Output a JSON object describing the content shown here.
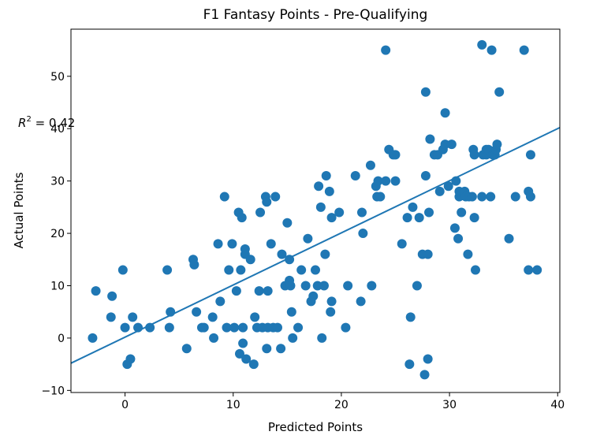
{
  "chart_data": {
    "type": "scatter",
    "title": "F1 Fantasy Points - Pre-Qualifying",
    "xlabel": "Predicted Points",
    "ylabel": "Actual Points",
    "xlim": [
      -5,
      40.2
    ],
    "ylim": [
      -10.4,
      59
    ],
    "xticks": [
      0,
      10,
      20,
      30,
      40
    ],
    "yticks": [
      -10,
      0,
      10,
      20,
      30,
      40,
      50
    ],
    "grid": false,
    "annotation": {
      "base": "R",
      "superscript": "2",
      "value_text": " = 0.42"
    },
    "point_color": "#1f77b4",
    "line_color": "#1f77b4",
    "fit_line": {
      "x": [
        -5,
        40.2
      ],
      "y": [
        -4.8,
        40.2
      ]
    },
    "points": [
      [
        -3,
        0
      ],
      [
        -2.7,
        9
      ],
      [
        -1.3,
        4
      ],
      [
        -1.2,
        8
      ],
      [
        -0.2,
        13
      ],
      [
        0,
        2
      ],
      [
        0.2,
        -5
      ],
      [
        0.5,
        -4
      ],
      [
        0.7,
        4
      ],
      [
        1.2,
        2
      ],
      [
        2.3,
        2
      ],
      [
        3.9,
        13
      ],
      [
        4.1,
        2
      ],
      [
        4.2,
        5
      ],
      [
        5.7,
        -2
      ],
      [
        6.3,
        15
      ],
      [
        6.4,
        14
      ],
      [
        6.6,
        5
      ],
      [
        7.1,
        2
      ],
      [
        7.3,
        2
      ],
      [
        8.1,
        4
      ],
      [
        8.2,
        0
      ],
      [
        8.6,
        18
      ],
      [
        8.8,
        7
      ],
      [
        9.2,
        27
      ],
      [
        9.4,
        2
      ],
      [
        9.6,
        13
      ],
      [
        9.9,
        18
      ],
      [
        10.1,
        2
      ],
      [
        10.3,
        9
      ],
      [
        10.5,
        24
      ],
      [
        10.6,
        -3
      ],
      [
        10.7,
        13
      ],
      [
        10.8,
        23
      ],
      [
        10.9,
        -1
      ],
      [
        10.9,
        2
      ],
      [
        11.1,
        16
      ],
      [
        11.1,
        17
      ],
      [
        11.2,
        -4
      ],
      [
        11.6,
        15
      ],
      [
        11.9,
        -5
      ],
      [
        12.0,
        4
      ],
      [
        12.2,
        2
      ],
      [
        12.4,
        9
      ],
      [
        12.5,
        24
      ],
      [
        12.7,
        2
      ],
      [
        13.0,
        27
      ],
      [
        13.1,
        26
      ],
      [
        13.1,
        -2
      ],
      [
        13.2,
        2
      ],
      [
        13.2,
        9
      ],
      [
        13.5,
        18
      ],
      [
        13.7,
        2
      ],
      [
        13.9,
        27
      ],
      [
        14.1,
        2
      ],
      [
        14.4,
        -2
      ],
      [
        14.5,
        16
      ],
      [
        14.8,
        10
      ],
      [
        15.0,
        22
      ],
      [
        15.2,
        15
      ],
      [
        15.2,
        11
      ],
      [
        15.3,
        10
      ],
      [
        15.4,
        5
      ],
      [
        15.5,
        0
      ],
      [
        16.0,
        2
      ],
      [
        16.3,
        13
      ],
      [
        16.7,
        10
      ],
      [
        16.9,
        19
      ],
      [
        17.2,
        7
      ],
      [
        17.4,
        8
      ],
      [
        17.6,
        13
      ],
      [
        17.8,
        10
      ],
      [
        17.9,
        29
      ],
      [
        18.1,
        25
      ],
      [
        18.2,
        0
      ],
      [
        18.4,
        10
      ],
      [
        18.5,
        16
      ],
      [
        18.6,
        31
      ],
      [
        18.9,
        28
      ],
      [
        19.0,
        5
      ],
      [
        19.1,
        23
      ],
      [
        19.1,
        7
      ],
      [
        19.8,
        24
      ],
      [
        20.4,
        2
      ],
      [
        20.6,
        10
      ],
      [
        21.3,
        31
      ],
      [
        21.8,
        7
      ],
      [
        21.9,
        24
      ],
      [
        22.0,
        20
      ],
      [
        22.7,
        33
      ],
      [
        22.8,
        10
      ],
      [
        23.2,
        29
      ],
      [
        23.3,
        27
      ],
      [
        23.4,
        30
      ],
      [
        23.6,
        27
      ],
      [
        24.1,
        55
      ],
      [
        24.1,
        30
      ],
      [
        24.4,
        36
      ],
      [
        24.8,
        35
      ],
      [
        25.0,
        35
      ],
      [
        25.0,
        30
      ],
      [
        25.6,
        18
      ],
      [
        26.1,
        23
      ],
      [
        26.3,
        -5
      ],
      [
        26.4,
        4
      ],
      [
        26.6,
        25
      ],
      [
        27.0,
        10
      ],
      [
        27.2,
        23
      ],
      [
        27.5,
        16
      ],
      [
        27.7,
        -7
      ],
      [
        27.8,
        47
      ],
      [
        27.8,
        31
      ],
      [
        28.0,
        -4
      ],
      [
        28.0,
        16
      ],
      [
        28.1,
        24
      ],
      [
        28.2,
        38
      ],
      [
        28.6,
        35
      ],
      [
        28.9,
        35
      ],
      [
        29.1,
        28
      ],
      [
        29.4,
        36
      ],
      [
        29.6,
        43
      ],
      [
        29.6,
        37
      ],
      [
        29.9,
        29
      ],
      [
        30.2,
        37
      ],
      [
        30.5,
        21
      ],
      [
        30.6,
        30
      ],
      [
        30.8,
        19
      ],
      [
        30.9,
        27
      ],
      [
        30.9,
        28
      ],
      [
        31.1,
        24
      ],
      [
        31.4,
        28
      ],
      [
        31.5,
        27
      ],
      [
        31.7,
        16
      ],
      [
        31.8,
        27
      ],
      [
        32.1,
        27
      ],
      [
        32.2,
        36
      ],
      [
        32.3,
        35
      ],
      [
        32.3,
        23
      ],
      [
        32.4,
        13
      ],
      [
        33.0,
        27
      ],
      [
        33.0,
        56
      ],
      [
        33.1,
        35
      ],
      [
        33.4,
        35
      ],
      [
        33.4,
        36
      ],
      [
        33.6,
        36
      ],
      [
        33.8,
        27
      ],
      [
        33.9,
        55
      ],
      [
        34.0,
        35
      ],
      [
        34.2,
        35
      ],
      [
        34.3,
        36
      ],
      [
        34.4,
        37
      ],
      [
        34.6,
        47
      ],
      [
        35.5,
        19
      ],
      [
        36.1,
        27
      ],
      [
        36.9,
        55
      ],
      [
        37.3,
        13
      ],
      [
        37.3,
        28
      ],
      [
        37.5,
        27
      ],
      [
        37.5,
        35
      ],
      [
        38.1,
        13
      ]
    ]
  }
}
